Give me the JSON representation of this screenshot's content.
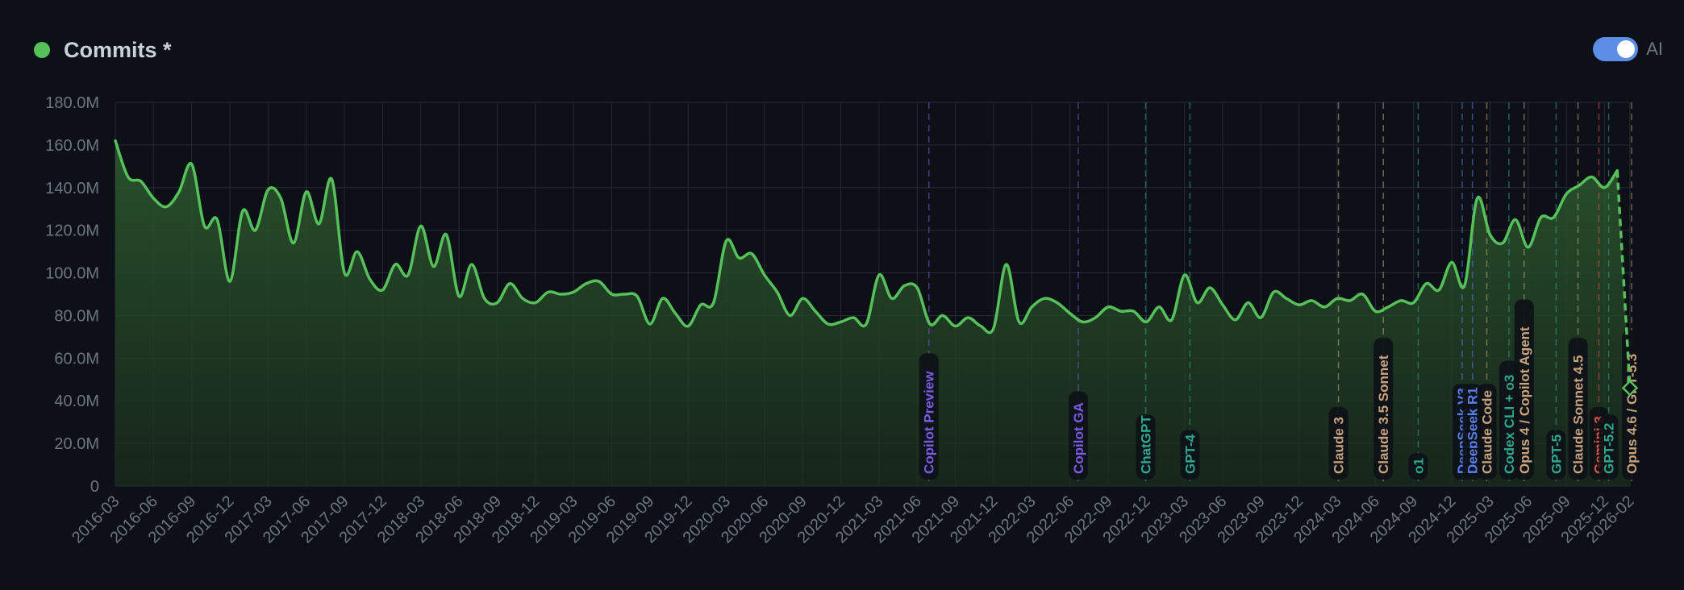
{
  "header": {
    "legend_label": "Commits *",
    "legend_color": "#56c15a",
    "ai_toggle": {
      "label": "AI",
      "state": "on",
      "track_color": "#5c8ee8"
    }
  },
  "chart_data": {
    "type": "area",
    "series": [
      {
        "name": "Commits *",
        "color": "#56c15a",
        "x": [
          "2016-03",
          "2016-04",
          "2016-05",
          "2016-06",
          "2016-07",
          "2016-08",
          "2016-09",
          "2016-10",
          "2016-11",
          "2016-12",
          "2017-01",
          "2017-02",
          "2017-03",
          "2017-04",
          "2017-05",
          "2017-06",
          "2017-07",
          "2017-08",
          "2017-09",
          "2017-10",
          "2017-11",
          "2017-12",
          "2018-01",
          "2018-02",
          "2018-03",
          "2018-04",
          "2018-05",
          "2018-06",
          "2018-07",
          "2018-08",
          "2018-09",
          "2018-10",
          "2018-11",
          "2018-12",
          "2019-01",
          "2019-02",
          "2019-03",
          "2019-04",
          "2019-05",
          "2019-06",
          "2019-07",
          "2019-08",
          "2019-09",
          "2019-10",
          "2019-11",
          "2019-12",
          "2020-01",
          "2020-02",
          "2020-03",
          "2020-04",
          "2020-05",
          "2020-06",
          "2020-07",
          "2020-08",
          "2020-09",
          "2020-10",
          "2020-11",
          "2020-12",
          "2021-01",
          "2021-02",
          "2021-03",
          "2021-04",
          "2021-05",
          "2021-06",
          "2021-07",
          "2021-08",
          "2021-09",
          "2021-10",
          "2021-11",
          "2021-12",
          "2022-01",
          "2022-02",
          "2022-03",
          "2022-04",
          "2022-05",
          "2022-06",
          "2022-07",
          "2022-08",
          "2022-09",
          "2022-10",
          "2022-11",
          "2022-12",
          "2023-01",
          "2023-02",
          "2023-03",
          "2023-04",
          "2023-05",
          "2023-06",
          "2023-07",
          "2023-08",
          "2023-09",
          "2023-10",
          "2023-11",
          "2023-12",
          "2024-01",
          "2024-02",
          "2024-03",
          "2024-04",
          "2024-05",
          "2024-06",
          "2024-07",
          "2024-08",
          "2024-09",
          "2024-10",
          "2024-11",
          "2024-12",
          "2025-01",
          "2025-02",
          "2025-03",
          "2025-04",
          "2025-05",
          "2025-06",
          "2025-07",
          "2025-08",
          "2025-09",
          "2025-10",
          "2025-11",
          "2025-12",
          "2026-01"
        ],
        "values": [
          162,
          145,
          143,
          135,
          131,
          138,
          151,
          122,
          125,
          96,
          129,
          120,
          139,
          135,
          114,
          138,
          123,
          144,
          100,
          110,
          97,
          92,
          104,
          99,
          122,
          103,
          118,
          89,
          104,
          88,
          86,
          95,
          88,
          86,
          91,
          90,
          91,
          95,
          96,
          90,
          90,
          89,
          76,
          88,
          81,
          75,
          85,
          86,
          115,
          107,
          109,
          99,
          91,
          80,
          88,
          82,
          76,
          77,
          79,
          76,
          99,
          88,
          94,
          93,
          76,
          80,
          75,
          79,
          75,
          74,
          104,
          77,
          84,
          88,
          86,
          81,
          77,
          79,
          84,
          82,
          82,
          77,
          84,
          78,
          99,
          86,
          93,
          85,
          78,
          86,
          79,
          91,
          88,
          85,
          87,
          84,
          88,
          87,
          90,
          82,
          84,
          87,
          86,
          95,
          92,
          105,
          94,
          135,
          118,
          114,
          125,
          112,
          126,
          126,
          137,
          141,
          145,
          140,
          148
        ]
      }
    ],
    "projection": {
      "from": [
        "2026-01",
        148
      ],
      "to": [
        "2026-02",
        46
      ]
    },
    "y_ticks": [
      "180.0M",
      "160.0M",
      "140.0M",
      "120.0M",
      "100.0M",
      "80.0M",
      "60.0M",
      "40.0M",
      "20.0M",
      "0"
    ],
    "x_ticks": [
      "2016-03",
      "2016-06",
      "2016-09",
      "2016-12",
      "2017-03",
      "2017-06",
      "2017-09",
      "2017-12",
      "2018-03",
      "2018-06",
      "2018-09",
      "2018-12",
      "2019-03",
      "2019-06",
      "2019-09",
      "2019-12",
      "2020-03",
      "2020-06",
      "2020-09",
      "2020-12",
      "2021-03",
      "2021-06",
      "2021-09",
      "2021-12",
      "2022-03",
      "2022-06",
      "2022-09",
      "2022-12",
      "2023-03",
      "2023-06",
      "2023-09",
      "2023-12",
      "2024-03",
      "2024-06",
      "2024-09",
      "2024-12",
      "2025-03",
      "2025-06",
      "2025-09",
      "2025-12",
      "2026-02"
    ],
    "ylim": [
      0,
      180
    ],
    "grid": true,
    "annotations": [
      {
        "label": "Copilot Preview",
        "date": "2021-06-29",
        "color": "#7c5ce6"
      },
      {
        "label": "Copilot GA",
        "date": "2022-06-21",
        "color": "#7c5ce6"
      },
      {
        "label": "ChatGPT",
        "date": "2022-11-30",
        "color": "#2ea98b"
      },
      {
        "label": "GPT-4",
        "date": "2023-03-14",
        "color": "#2ea98b"
      },
      {
        "label": "Claude 3",
        "date": "2024-03-04",
        "color": "#c9a27e"
      },
      {
        "label": "Claude 3.5 Sonnet",
        "date": "2024-06-20",
        "color": "#c9a27e"
      },
      {
        "label": "o1",
        "date": "2024-09-12",
        "color": "#2ea98b"
      },
      {
        "label": "DeepSeek V3",
        "date": "2024-12-26",
        "color": "#5a7ff0"
      },
      {
        "label": "DeepSeek R1",
        "date": "2025-01-20",
        "color": "#5a7ff0"
      },
      {
        "label": "Claude Code",
        "date": "2025-02-24",
        "color": "#c9a27e"
      },
      {
        "label": "Codex CLI + o3",
        "date": "2025-04-16",
        "color": "#2ea98b"
      },
      {
        "label": "Opus 4 / Copilot Agent",
        "date": "2025-05-22",
        "color": "#c9a27e"
      },
      {
        "label": "GPT-5",
        "date": "2025-08-07",
        "color": "#2ea98b"
      },
      {
        "label": "Claude Sonnet 4.5",
        "date": "2025-09-29",
        "color": "#c9a27e"
      },
      {
        "label": "Gemini 3",
        "date": "2025-11-18",
        "color": "#e5534b"
      },
      {
        "label": "GPT-5.2",
        "date": "2025-12-11",
        "color": "#2ea98b"
      },
      {
        "label": "Opus 4.6 / GPT-5.3",
        "date": "2026-02-05",
        "color": "#c9a27e"
      }
    ]
  }
}
